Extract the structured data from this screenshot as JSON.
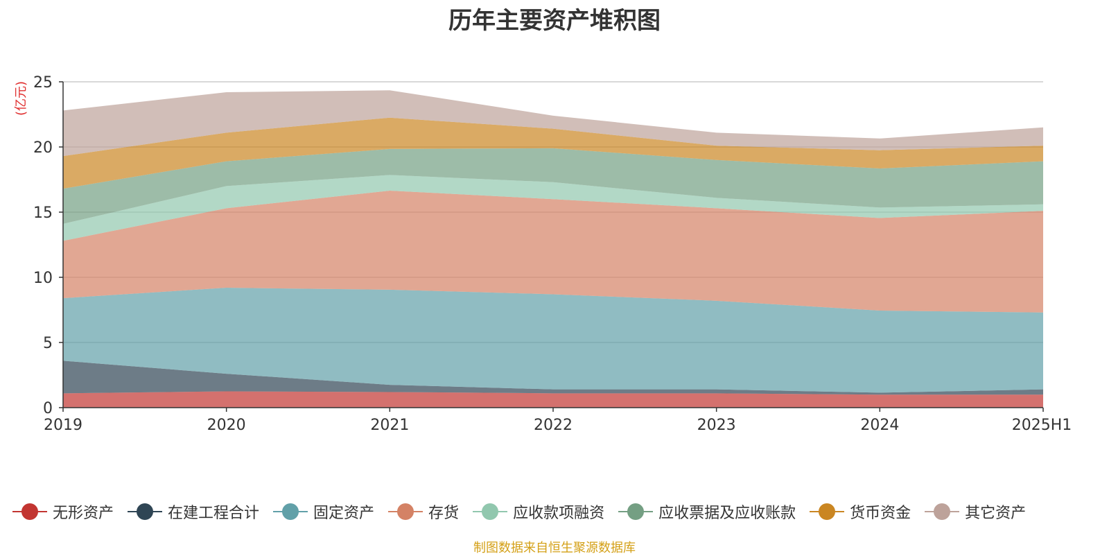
{
  "chart_data": {
    "type": "area",
    "title": "历年主要资产堆积图",
    "ylabel": "(亿元)",
    "xlabel": "",
    "categories": [
      "2019",
      "2020",
      "2021",
      "2022",
      "2023",
      "2024",
      "2025H1"
    ],
    "ylim": [
      0,
      25
    ],
    "yticks": [
      0,
      5,
      10,
      15,
      20,
      25
    ],
    "stacked": true,
    "grid": true,
    "legend_position": "bottom",
    "series": [
      {
        "name": "无形资产",
        "color": "#c23531",
        "values": [
          1.1,
          1.25,
          1.2,
          1.1,
          1.1,
          1.0,
          1.0
        ]
      },
      {
        "name": "在建工程合计",
        "color": "#2f4554",
        "values": [
          2.5,
          1.35,
          0.55,
          0.3,
          0.3,
          0.15,
          0.4
        ]
      },
      {
        "name": "固定资产",
        "color": "#61a0a8",
        "values": [
          4.8,
          6.6,
          7.3,
          7.3,
          6.8,
          6.3,
          5.9
        ]
      },
      {
        "name": "存货",
        "color": "#d48265",
        "values": [
          4.4,
          6.1,
          7.6,
          7.3,
          7.1,
          7.1,
          7.8
        ]
      },
      {
        "name": "应收款项融资",
        "color": "#91c7ae",
        "values": [
          1.3,
          1.7,
          1.2,
          1.3,
          0.8,
          0.8,
          0.5
        ]
      },
      {
        "name": "应收票据及应收账款",
        "color": "#749f83",
        "values": [
          2.7,
          1.9,
          2.0,
          2.6,
          2.9,
          3.0,
          3.3
        ]
      },
      {
        "name": "货币资金",
        "color": "#ca8622",
        "values": [
          2.5,
          2.2,
          2.4,
          1.5,
          1.1,
          1.4,
          1.2
        ]
      },
      {
        "name": "其它资产",
        "color": "#bda29a",
        "values": [
          3.5,
          3.1,
          2.1,
          1.0,
          1.0,
          0.9,
          1.4
        ]
      }
    ]
  },
  "source_note": "制图数据来自恒生聚源数据库",
  "colors": {
    "title": "#333333",
    "axis": "#333333",
    "grid": "#cccccc",
    "ylabel": "#e03030",
    "source_note": "#d4a017"
  }
}
